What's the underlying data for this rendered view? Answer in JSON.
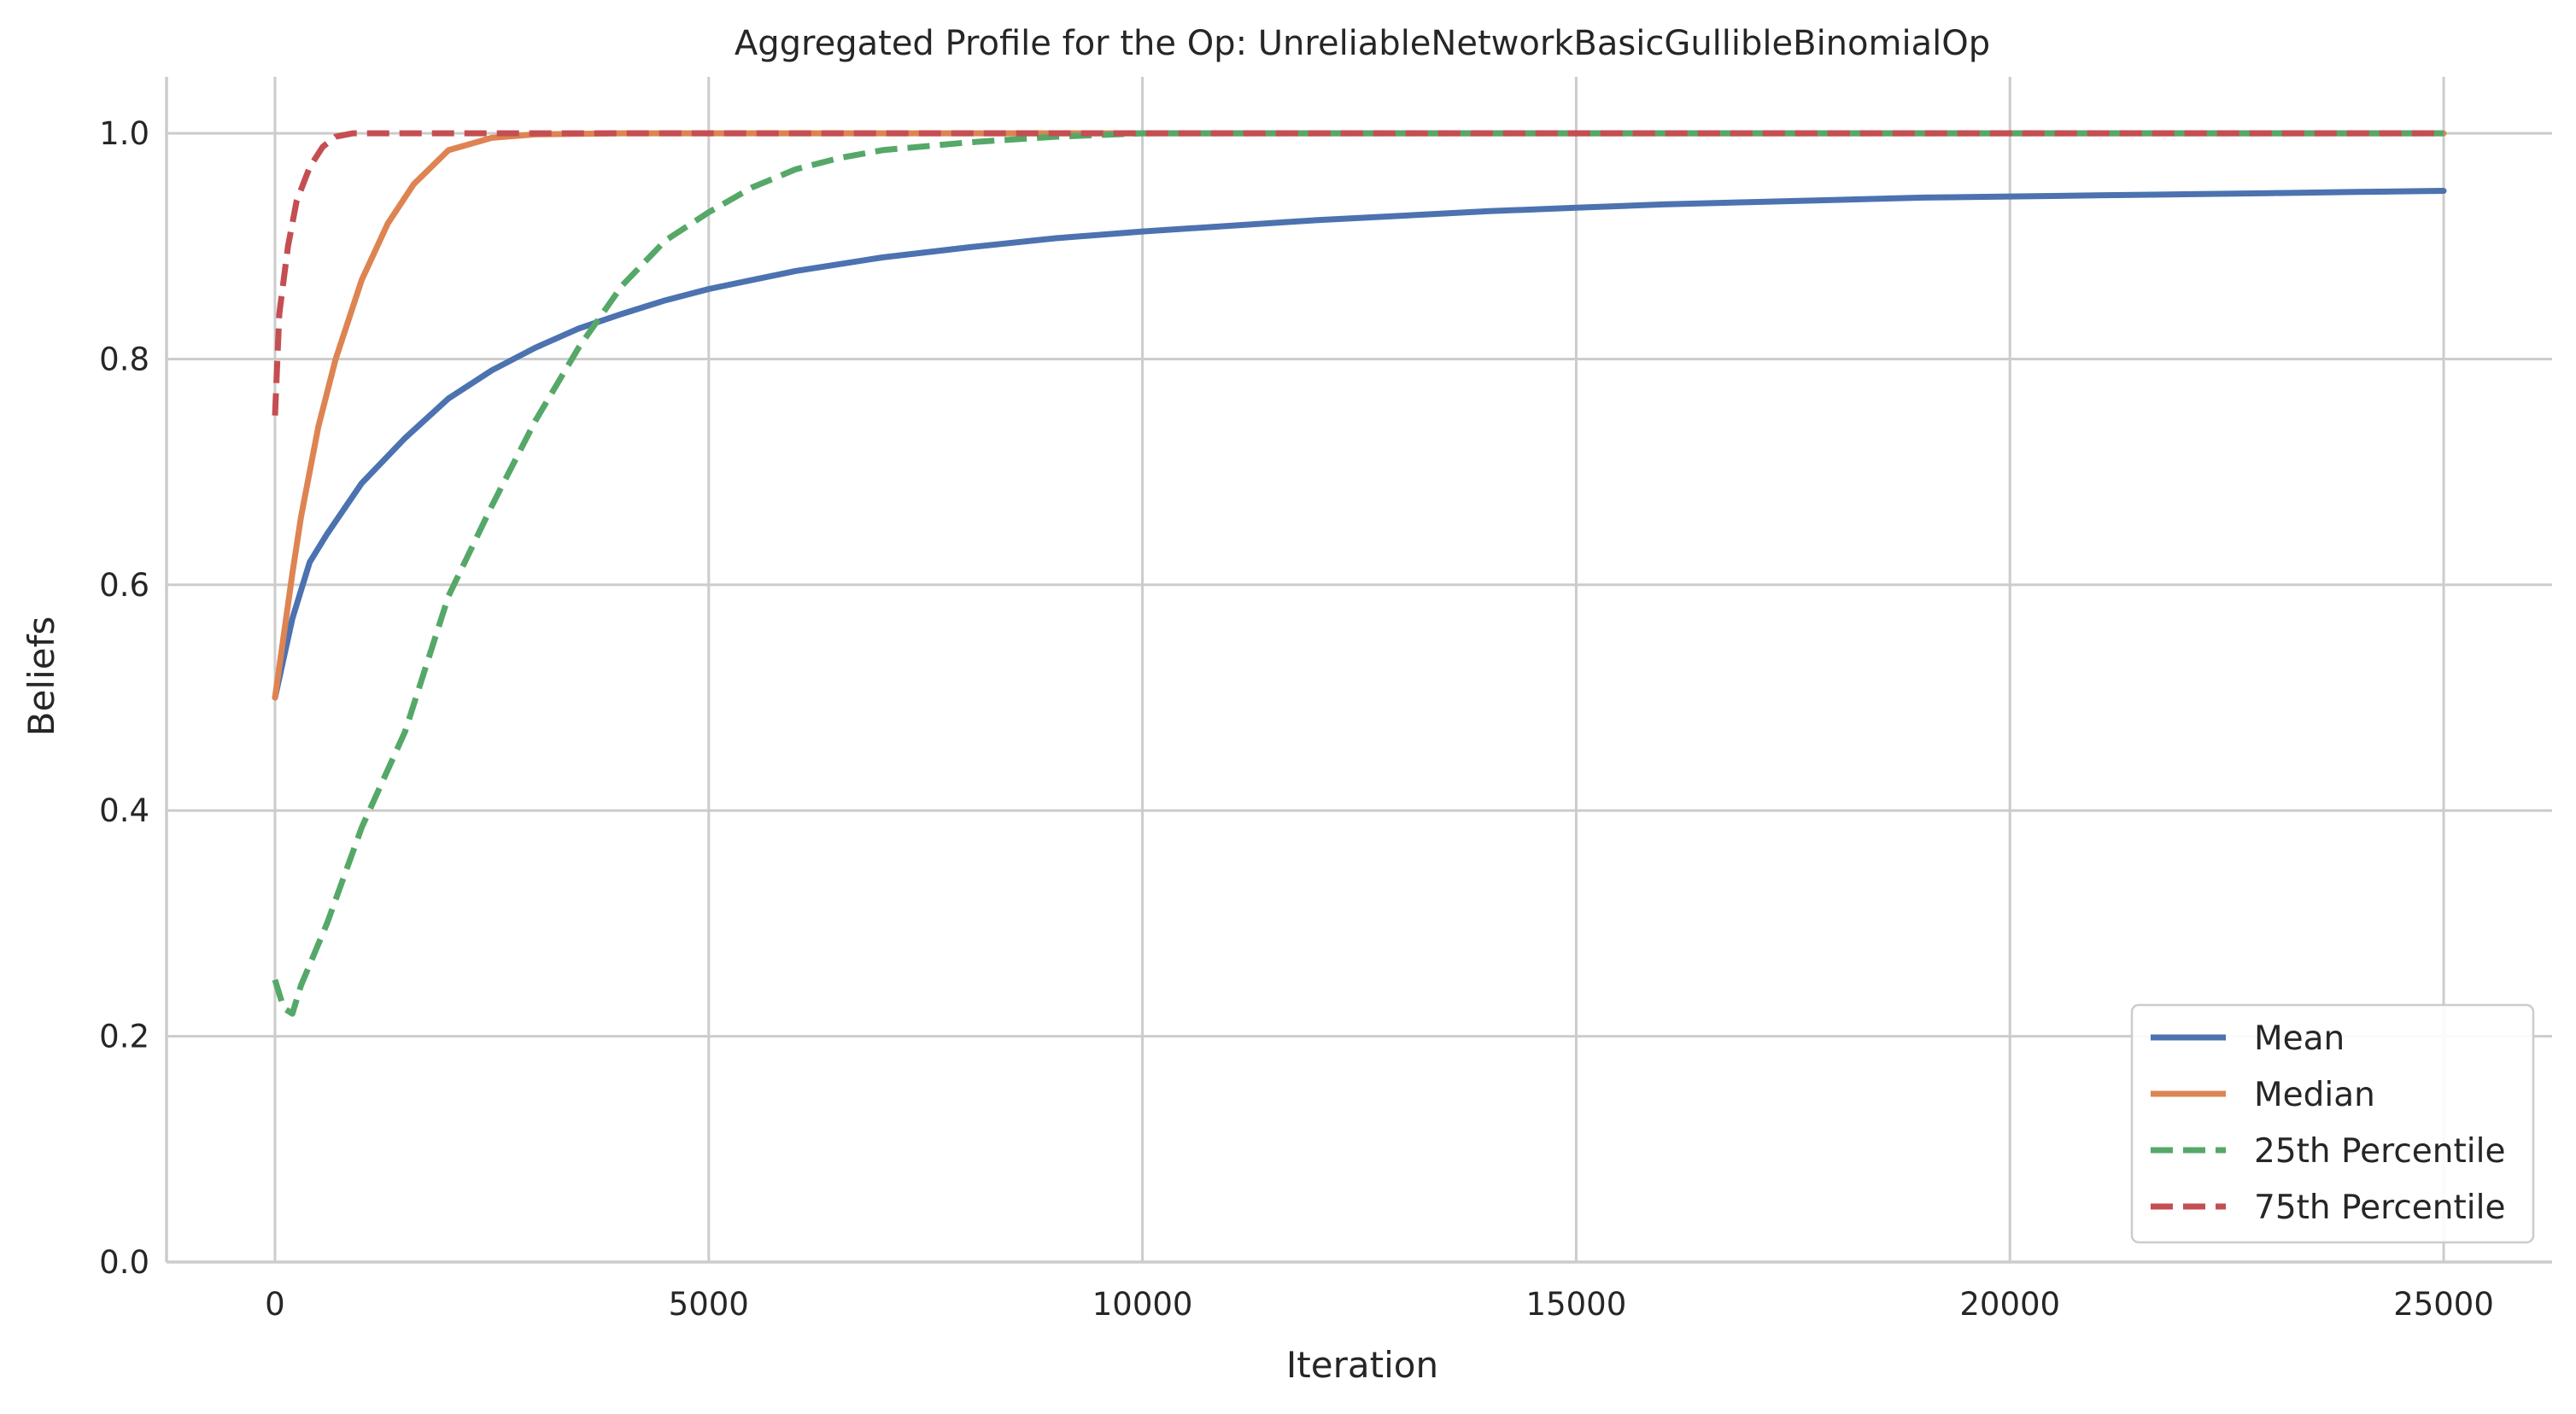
{
  "chart_data": {
    "type": "line",
    "title": "Aggregated Profile for the Op: UnreliableNetworkBasicGullibleBinomialOp",
    "xlabel": "Iteration",
    "ylabel": "Beliefs",
    "xlim": [
      -1250,
      26250
    ],
    "ylim": [
      0.0,
      1.05
    ],
    "xticks": [
      0,
      5000,
      10000,
      15000,
      20000,
      25000
    ],
    "xtick_labels": [
      "0",
      "5000",
      "10000",
      "15000",
      "20000",
      "25000"
    ],
    "yticks": [
      0.0,
      0.2,
      0.4,
      0.6,
      0.8,
      1.0
    ],
    "ytick_labels": [
      "0.0",
      "0.2",
      "0.4",
      "0.6",
      "0.8",
      "1.0"
    ],
    "grid": true,
    "legend_position": "bottom-right",
    "series": [
      {
        "name": "Mean",
        "color": "#4c72b0",
        "style": "solid",
        "x": [
          0,
          200,
          400,
          600,
          1000,
          1500,
          2000,
          2500,
          3000,
          3500,
          4000,
          4500,
          5000,
          6000,
          7000,
          8000,
          9000,
          10000,
          11000,
          12000,
          13000,
          14000,
          15000,
          16000,
          17000,
          18000,
          19000,
          20000,
          21000,
          22000,
          23000,
          24000,
          25000
        ],
        "y": [
          0.5,
          0.57,
          0.62,
          0.645,
          0.69,
          0.73,
          0.765,
          0.79,
          0.81,
          0.827,
          0.84,
          0.852,
          0.862,
          0.878,
          0.89,
          0.899,
          0.907,
          0.913,
          0.918,
          0.923,
          0.927,
          0.931,
          0.934,
          0.937,
          0.939,
          0.941,
          0.943,
          0.944,
          0.945,
          0.946,
          0.947,
          0.948,
          0.949
        ]
      },
      {
        "name": "Median",
        "color": "#dd8452",
        "style": "solid",
        "x": [
          0,
          200,
          300,
          500,
          700,
          1000,
          1300,
          1600,
          2000,
          2500,
          3000,
          4000,
          10000,
          25000
        ],
        "y": [
          0.5,
          0.61,
          0.66,
          0.74,
          0.8,
          0.87,
          0.92,
          0.955,
          0.985,
          0.996,
          0.999,
          1.0,
          1.0,
          1.0
        ],
        "x_end": 25000
      },
      {
        "name": "25th Percentile",
        "color": "#55a868",
        "style": "dashed",
        "x": [
          0,
          100,
          200,
          300,
          600,
          1000,
          1500,
          2000,
          2500,
          3000,
          3500,
          4000,
          4500,
          5000,
          5500,
          6000,
          6500,
          7000,
          8000,
          9000,
          10000,
          15000,
          20000,
          25000
        ],
        "y": [
          0.25,
          0.225,
          0.22,
          0.245,
          0.3,
          0.385,
          0.47,
          0.59,
          0.67,
          0.745,
          0.81,
          0.865,
          0.905,
          0.93,
          0.952,
          0.968,
          0.978,
          0.985,
          0.992,
          0.997,
          1.0,
          1.0,
          1.0,
          1.0
        ]
      },
      {
        "name": "75th Percentile",
        "color": "#c44e52",
        "style": "dashed",
        "x": [
          0,
          50,
          150,
          250,
          400,
          550,
          700,
          900,
          1200,
          25000
        ],
        "y": [
          0.75,
          0.84,
          0.9,
          0.94,
          0.97,
          0.988,
          0.997,
          1.0,
          1.0,
          1.0
        ]
      }
    ]
  }
}
